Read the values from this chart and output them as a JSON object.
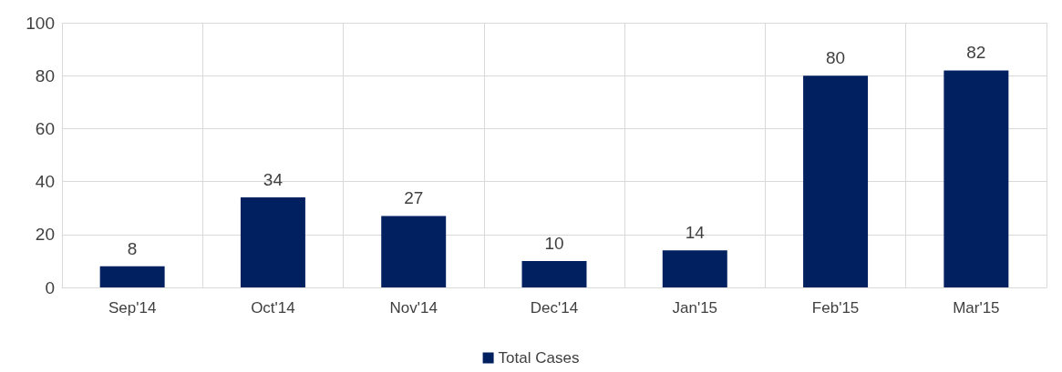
{
  "chart_data": {
    "type": "bar",
    "categories": [
      "Sep'14",
      "Oct'14",
      "Nov'14",
      "Dec'14",
      "Jan'15",
      "Feb'15",
      "Mar'15"
    ],
    "series": [
      {
        "name": "Total Cases",
        "color": "#002060",
        "values": [
          8,
          34,
          27,
          10,
          14,
          80,
          82
        ]
      }
    ],
    "ylim": [
      0,
      100
    ],
    "yticks": [
      0,
      20,
      40,
      60,
      80,
      100
    ],
    "grid": true,
    "legend": "bottom",
    "data_labels": true
  }
}
